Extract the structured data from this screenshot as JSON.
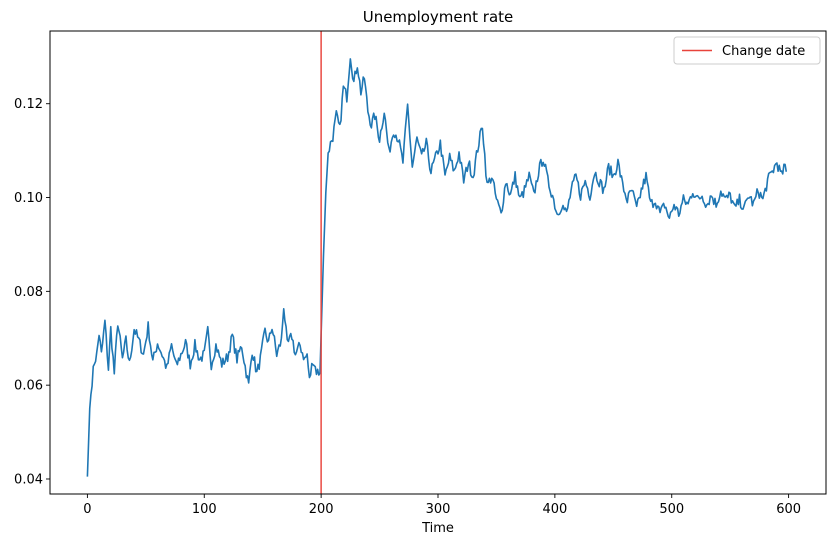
{
  "chart_data": {
    "type": "line",
    "title": "Unemployment rate",
    "xlabel": "Time",
    "ylabel": "",
    "xlim": [
      -32,
      632
    ],
    "ylim": [
      0.0368,
      0.1355
    ],
    "x_ticks": [
      0,
      100,
      200,
      300,
      400,
      500,
      600
    ],
    "x_tick_labels": [
      "0",
      "100",
      "200",
      "300",
      "400",
      "500",
      "600"
    ],
    "y_ticks": [
      0.04,
      0.06,
      0.08,
      0.1,
      0.12
    ],
    "y_tick_labels": [
      "0.04",
      "0.06",
      "0.08",
      "0.10",
      "0.12"
    ],
    "grid": false,
    "legend": {
      "position": "top-right",
      "entries": [
        {
          "label": "Change date",
          "color": "#e8433b"
        }
      ]
    },
    "vlines": [
      {
        "x": 200,
        "label": "Change date",
        "color": "#e8433b"
      }
    ],
    "series": [
      {
        "color": "#1f77b4",
        "anchors": [
          [
            0,
            0.0405
          ],
          [
            2,
            0.055
          ],
          [
            4,
            0.061
          ],
          [
            6,
            0.065
          ],
          [
            8,
            0.0665
          ],
          [
            10,
            0.071
          ],
          [
            12,
            0.0665
          ],
          [
            15,
            0.0735
          ],
          [
            18,
            0.0635
          ],
          [
            20,
            0.072
          ],
          [
            23,
            0.0625
          ],
          [
            26,
            0.0735
          ],
          [
            30,
            0.0655
          ],
          [
            33,
            0.0695
          ],
          [
            36,
            0.0645
          ],
          [
            40,
            0.072
          ],
          [
            44,
            0.0695
          ],
          [
            48,
            0.0665
          ],
          [
            52,
            0.0725
          ],
          [
            56,
            0.065
          ],
          [
            60,
            0.069
          ],
          [
            64,
            0.0665
          ],
          [
            68,
            0.0635
          ],
          [
            72,
            0.0685
          ],
          [
            76,
            0.064
          ],
          [
            80,
            0.0665
          ],
          [
            84,
            0.069
          ],
          [
            88,
            0.0645
          ],
          [
            92,
            0.0685
          ],
          [
            96,
            0.0655
          ],
          [
            100,
            0.0665
          ],
          [
            103,
            0.0715
          ],
          [
            106,
            0.0645
          ],
          [
            110,
            0.0685
          ],
          [
            115,
            0.0645
          ],
          [
            120,
            0.066
          ],
          [
            124,
            0.0705
          ],
          [
            128,
            0.0655
          ],
          [
            132,
            0.0685
          ],
          [
            135,
            0.064
          ],
          [
            138,
            0.06
          ],
          [
            141,
            0.0675
          ],
          [
            145,
            0.0625
          ],
          [
            148,
            0.0655
          ],
          [
            152,
            0.0715
          ],
          [
            155,
            0.069
          ],
          [
            158,
            0.0725
          ],
          [
            162,
            0.0665
          ],
          [
            166,
            0.0695
          ],
          [
            168,
            0.077
          ],
          [
            171,
            0.0685
          ],
          [
            175,
            0.0705
          ],
          [
            178,
            0.0665
          ],
          [
            182,
            0.0685
          ],
          [
            186,
            0.0655
          ],
          [
            188,
            0.0665
          ],
          [
            190,
            0.061
          ],
          [
            193,
            0.0655
          ],
          [
            196,
            0.063
          ],
          [
            199,
            0.0625
          ],
          [
            202,
            0.0875
          ],
          [
            204,
            0.101
          ],
          [
            206,
            0.1095
          ],
          [
            208,
            0.1115
          ],
          [
            210,
            0.113
          ],
          [
            213,
            0.1175
          ],
          [
            216,
            0.1145
          ],
          [
            219,
            0.1235
          ],
          [
            222,
            0.1215
          ],
          [
            225,
            0.1305
          ],
          [
            228,
            0.1245
          ],
          [
            231,
            0.1285
          ],
          [
            234,
            0.1225
          ],
          [
            237,
            0.1255
          ],
          [
            240,
            0.1185
          ],
          [
            243,
            0.1155
          ],
          [
            246,
            0.1175
          ],
          [
            250,
            0.1125
          ],
          [
            254,
            0.1185
          ],
          [
            258,
            0.1095
          ],
          [
            262,
            0.1145
          ],
          [
            266,
            0.1125
          ],
          [
            270,
            0.1075
          ],
          [
            274,
            0.1195
          ],
          [
            278,
            0.1065
          ],
          [
            282,
            0.1125
          ],
          [
            286,
            0.1085
          ],
          [
            290,
            0.1115
          ],
          [
            294,
            0.1055
          ],
          [
            298,
            0.1085
          ],
          [
            302,
            0.1115
          ],
          [
            306,
            0.1045
          ],
          [
            310,
            0.1085
          ],
          [
            314,
            0.1055
          ],
          [
            318,
            0.1095
          ],
          [
            322,
            0.1035
          ],
          [
            326,
            0.1075
          ],
          [
            330,
            0.1045
          ],
          [
            334,
            0.1105
          ],
          [
            338,
            0.1155
          ],
          [
            342,
            0.1025
          ],
          [
            346,
            0.1045
          ],
          [
            350,
            0.0995
          ],
          [
            354,
            0.0965
          ],
          [
            358,
            0.1035
          ],
          [
            362,
            0.1005
          ],
          [
            366,
            0.1045
          ],
          [
            370,
            0.0995
          ],
          [
            374,
            0.1015
          ],
          [
            378,
            0.1045
          ],
          [
            382,
            0.1005
          ],
          [
            386,
            0.1055
          ],
          [
            390,
            0.1085
          ],
          [
            394,
            0.1035
          ],
          [
            398,
            0.1005
          ],
          [
            402,
            0.0965
          ],
          [
            406,
            0.0985
          ],
          [
            410,
            0.0965
          ],
          [
            414,
            0.1015
          ],
          [
            418,
            0.1045
          ],
          [
            422,
            0.1005
          ],
          [
            426,
            0.1035
          ],
          [
            430,
            0.1005
          ],
          [
            434,
            0.1055
          ],
          [
            438,
            0.1035
          ],
          [
            442,
            0.1015
          ],
          [
            446,
            0.1065
          ],
          [
            450,
            0.1045
          ],
          [
            454,
            0.1075
          ],
          [
            458,
            0.1025
          ],
          [
            462,
            0.0995
          ],
          [
            466,
            0.1015
          ],
          [
            470,
            0.0975
          ],
          [
            474,
            0.1015
          ],
          [
            478,
            0.1045
          ],
          [
            482,
            0.0985
          ],
          [
            486,
            0.0995
          ],
          [
            490,
            0.0965
          ],
          [
            494,
            0.0985
          ],
          [
            498,
            0.0955
          ],
          [
            502,
            0.0985
          ],
          [
            506,
            0.0965
          ],
          [
            510,
            0.0995
          ],
          [
            514,
            0.0985
          ],
          [
            518,
            0.1015
          ],
          [
            522,
            0.0995
          ],
          [
            526,
            0.1005
          ],
          [
            530,
            0.0985
          ],
          [
            534,
            0.1005
          ],
          [
            538,
            0.0985
          ],
          [
            542,
            0.1015
          ],
          [
            546,
            0.0995
          ],
          [
            550,
            0.1005
          ],
          [
            554,
            0.0975
          ],
          [
            558,
            0.0995
          ],
          [
            562,
            0.0975
          ],
          [
            566,
            0.1005
          ],
          [
            570,
            0.0985
          ],
          [
            574,
            0.1015
          ],
          [
            578,
            0.0995
          ],
          [
            582,
            0.1035
          ],
          [
            586,
            0.1055
          ],
          [
            590,
            0.1075
          ],
          [
            594,
            0.1045
          ],
          [
            596,
            0.1065
          ],
          [
            598,
            0.1055
          ]
        ],
        "noise": 0.0024,
        "seed": 7
      }
    ]
  }
}
